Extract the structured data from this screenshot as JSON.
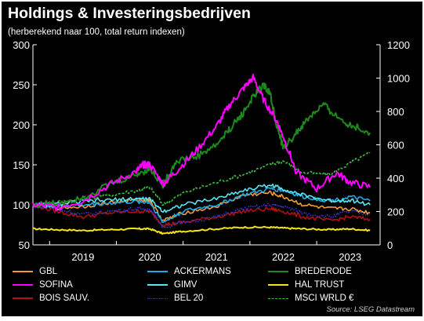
{
  "title": "Holdings & Investeringsbedrijven",
  "subtitle": "(herberekend naar 100, total return indexen)",
  "source": "Source: LSEG Datastream",
  "chart_data": {
    "type": "line",
    "x_domain": [
      2018.25,
      2023.45
    ],
    "x_ticks": [
      {
        "label": "2019",
        "at": 2019.0
      },
      {
        "label": "2020",
        "at": 2020.0
      },
      {
        "label": "2021",
        "at": 2021.0
      },
      {
        "label": "2022",
        "at": 2022.0
      },
      {
        "label": "2023",
        "at": 2023.0
      }
    ],
    "y_left": {
      "ylim": [
        50,
        300
      ],
      "ticks": [
        "50",
        "100",
        "150",
        "200",
        "250",
        "300"
      ]
    },
    "y_right": {
      "ylim": [
        0,
        1200
      ],
      "ticks": [
        "0",
        "200",
        "400",
        "600",
        "800",
        "1000",
        "1200"
      ]
    },
    "series": [
      {
        "name": "GBL",
        "color": "#f39b3a",
        "style": "solid",
        "axis": "left",
        "x": [
          2018.25,
          2018.6,
          2019.0,
          2019.4,
          2019.8,
          2020.0,
          2020.2,
          2020.5,
          2021.0,
          2021.4,
          2021.8,
          2022.0,
          2022.3,
          2022.7,
          2023.0,
          2023.3
        ],
        "y": [
          100,
          96,
          98,
          103,
          106,
          106,
          80,
          90,
          98,
          112,
          115,
          110,
          100,
          95,
          95,
          90
        ]
      },
      {
        "name": "SOFINA",
        "color": "#ff00ff",
        "style": "solid",
        "axis": "left",
        "x": [
          2018.25,
          2018.6,
          2019.0,
          2019.4,
          2019.8,
          2019.9,
          2020.0,
          2020.2,
          2020.4,
          2020.7,
          2021.0,
          2021.2,
          2021.4,
          2021.55,
          2021.7,
          2021.9,
          2022.0,
          2022.2,
          2022.5,
          2022.8,
          2023.0,
          2023.3
        ],
        "y": [
          100,
          97,
          105,
          125,
          142,
          150,
          150,
          126,
          142,
          168,
          198,
          225,
          245,
          259,
          232,
          205,
          185,
          140,
          120,
          140,
          128,
          122
        ]
      },
      {
        "name": "BOIS SAUV.",
        "color": "#b01010",
        "style": "solid",
        "axis": "left",
        "x": [
          2018.25,
          2018.6,
          2019.0,
          2019.4,
          2019.8,
          2020.0,
          2020.2,
          2020.5,
          2021.0,
          2021.4,
          2021.8,
          2022.0,
          2022.3,
          2022.7,
          2023.0,
          2023.3
        ],
        "y": [
          100,
          92,
          85,
          90,
          92,
          92,
          75,
          78,
          85,
          92,
          95,
          92,
          85,
          80,
          85,
          82
        ]
      },
      {
        "name": "ACKERMANS",
        "color": "#1ea9e8",
        "style": "solid",
        "axis": "left",
        "x": [
          2018.25,
          2018.6,
          2019.0,
          2019.4,
          2019.8,
          2020.0,
          2020.2,
          2020.5,
          2021.0,
          2021.4,
          2021.8,
          2022.0,
          2022.3,
          2022.7,
          2023.0,
          2023.3
        ],
        "y": [
          100,
          98,
          100,
          102,
          104,
          103,
          78,
          92,
          100,
          112,
          120,
          118,
          110,
          105,
          110,
          105
        ]
      },
      {
        "name": "GIMV",
        "color": "#55e6f0",
        "style": "solid",
        "axis": "left",
        "x": [
          2018.25,
          2018.6,
          2019.0,
          2019.4,
          2019.8,
          2020.0,
          2020.2,
          2020.5,
          2021.0,
          2021.4,
          2021.8,
          2022.0,
          2022.3,
          2022.7,
          2023.0,
          2023.3
        ],
        "y": [
          100,
          101,
          104,
          106,
          108,
          107,
          92,
          100,
          108,
          118,
          125,
          120,
          112,
          105,
          106,
          100
        ]
      },
      {
        "name": "BEL 20",
        "color": "#3b3bd6",
        "style": "dotted",
        "axis": "left",
        "x": [
          2018.25,
          2018.6,
          2019.0,
          2019.4,
          2019.8,
          2020.0,
          2020.2,
          2020.5,
          2021.0,
          2021.4,
          2021.8,
          2022.0,
          2022.3,
          2022.7,
          2023.0,
          2023.3
        ],
        "y": [
          100,
          95,
          88,
          92,
          95,
          95,
          72,
          78,
          85,
          95,
          100,
          98,
          90,
          85,
          92,
          88
        ]
      },
      {
        "name": "BREDERODE",
        "color": "#1e8a1e",
        "style": "solid",
        "axis": "left",
        "x": [
          2018.25,
          2018.6,
          2019.0,
          2019.4,
          2019.8,
          2020.0,
          2020.2,
          2020.4,
          2020.7,
          2021.0,
          2021.2,
          2021.4,
          2021.55,
          2021.7,
          2021.8,
          2021.9,
          2022.0,
          2022.2,
          2022.4,
          2022.6,
          2022.8,
          2023.0,
          2023.3
        ],
        "y": [
          100,
          102,
          110,
          125,
          138,
          145,
          125,
          155,
          160,
          175,
          195,
          215,
          235,
          250,
          240,
          200,
          170,
          190,
          210,
          225,
          210,
          200,
          190
        ]
      },
      {
        "name": "HAL TRUST",
        "color": "#f5e416",
        "style": "solid",
        "axis": "left",
        "x": [
          2018.25,
          2018.6,
          2019.0,
          2019.4,
          2019.8,
          2020.0,
          2020.2,
          2020.5,
          2021.0,
          2021.4,
          2021.8,
          2022.0,
          2022.3,
          2022.7,
          2023.0,
          2023.3
        ],
        "y": [
          70,
          69,
          68,
          69,
          70,
          70,
          64,
          67,
          70,
          72,
          72,
          71,
          70,
          69,
          70,
          68
        ]
      },
      {
        "name": "MSCI WRLD €",
        "color": "#3fbf3f",
        "style": "dashed",
        "axis": "left",
        "x": [
          2018.25,
          2018.6,
          2019.0,
          2019.4,
          2019.8,
          2020.0,
          2020.2,
          2020.5,
          2021.0,
          2021.4,
          2021.8,
          2022.0,
          2022.3,
          2022.7,
          2023.0,
          2023.3
        ],
        "y": [
          100,
          103,
          108,
          112,
          118,
          122,
          100,
          115,
          128,
          138,
          150,
          155,
          140,
          138,
          152,
          165
        ]
      }
    ],
    "legend": [
      [
        "GBL",
        "ACKERMANS",
        "BREDERODE"
      ],
      [
        "SOFINA",
        "GIMV",
        "HAL TRUST"
      ],
      [
        "BOIS SAUV.",
        "BEL 20",
        "MSCI WRLD €"
      ]
    ]
  }
}
